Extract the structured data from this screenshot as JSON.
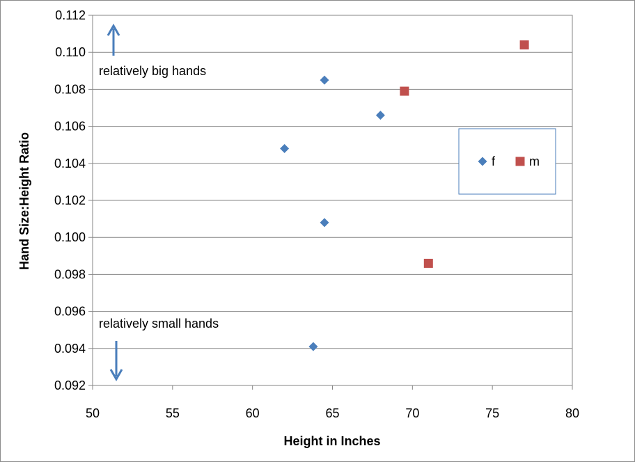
{
  "chart_data": {
    "type": "scatter",
    "title": "",
    "xlabel": "Height in Inches",
    "ylabel": "Hand Size:Height Ratio",
    "xlim": [
      50,
      80
    ],
    "ylim": [
      0.092,
      0.112
    ],
    "x_ticks": [
      "50",
      "55",
      "60",
      "65",
      "70",
      "75",
      "80"
    ],
    "y_ticks": [
      "0.092",
      "0.094",
      "0.096",
      "0.098",
      "0.100",
      "0.102",
      "0.104",
      "0.106",
      "0.108",
      "0.110",
      "0.112"
    ],
    "grid": "horizontal",
    "legend_placement": "right",
    "series": [
      {
        "name": "f",
        "marker": "diamond",
        "color": "#4a7ebb",
        "points": [
          {
            "x": 62.0,
            "y": 0.1048
          },
          {
            "x": 63.8,
            "y": 0.0941
          },
          {
            "x": 64.5,
            "y": 0.1085
          },
          {
            "x": 64.5,
            "y": 0.1008
          },
          {
            "x": 68.0,
            "y": 0.1066
          }
        ]
      },
      {
        "name": "m",
        "marker": "square",
        "color": "#c0504d",
        "points": [
          {
            "x": 69.5,
            "y": 0.1079
          },
          {
            "x": 71.0,
            "y": 0.0986
          },
          {
            "x": 77.0,
            "y": 0.1104
          }
        ]
      }
    ],
    "annotations": {
      "top": "relatively big hands",
      "bottom": "relatively small hands"
    }
  }
}
